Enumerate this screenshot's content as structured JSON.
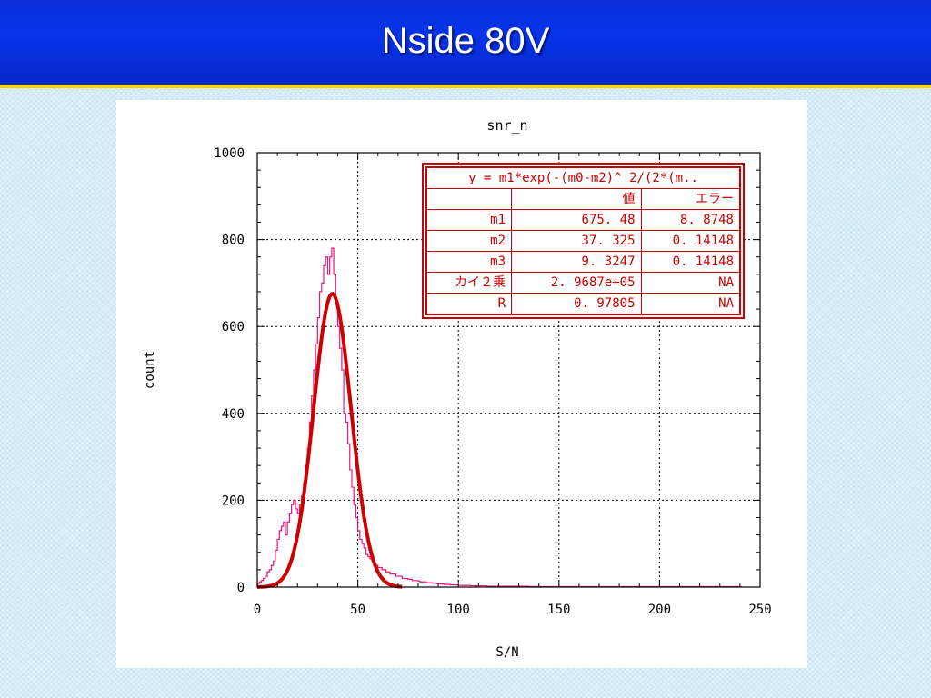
{
  "slide": {
    "title": "Nside 80V"
  },
  "colors": {
    "hist": "#e8157d",
    "fit": "#cc0000",
    "axis": "#000000",
    "grid": "#000000",
    "title_bar": "#0733e9",
    "title_underline": "#ffd400"
  },
  "fit_table": {
    "formula": "y = m1*exp(-(m0-m2)^ 2/(2*(m..",
    "headers": [
      "",
      "値",
      "エラー"
    ],
    "rows": [
      {
        "name": "m1",
        "value": "675. 48",
        "error": "8. 8748"
      },
      {
        "name": "m2",
        "value": "37. 325",
        "error": "0. 14148"
      },
      {
        "name": "m3",
        "value": "9. 3247",
        "error": "0. 14148"
      },
      {
        "name": "カイ２乗",
        "value": "2. 9687e+05",
        "error": "NA"
      },
      {
        "name": "R",
        "value": "0. 97805",
        "error": "NA"
      }
    ]
  },
  "chart_data": {
    "type": "line",
    "title": "snr_n",
    "xlabel": "S/N",
    "ylabel": "count",
    "xlim": [
      0,
      250
    ],
    "ylim": [
      0,
      1000
    ],
    "x_ticks": [
      0,
      50,
      100,
      150,
      200,
      250
    ],
    "y_ticks": [
      0,
      200,
      400,
      600,
      800,
      1000
    ],
    "grid": true,
    "series": [
      {
        "kind": "histogram",
        "color": "#e8157d",
        "bin_width": 1,
        "x": [
          0,
          1,
          2,
          3,
          4,
          5,
          6,
          7,
          8,
          9,
          10,
          11,
          12,
          13,
          14,
          15,
          16,
          17,
          18,
          19,
          20,
          21,
          22,
          23,
          24,
          25,
          26,
          27,
          28,
          29,
          30,
          31,
          32,
          33,
          34,
          35,
          36,
          37,
          38,
          39,
          40,
          41,
          42,
          43,
          44,
          45,
          46,
          47,
          48,
          49,
          50,
          51,
          52,
          53,
          54,
          55,
          56,
          57,
          58,
          59,
          60,
          61,
          62,
          63,
          64,
          65,
          66,
          67,
          68,
          69,
          70,
          71,
          72,
          73,
          74,
          75,
          76,
          77,
          78,
          79,
          80,
          81,
          82,
          83,
          84,
          85,
          86,
          87,
          88,
          89,
          90,
          91,
          92,
          93,
          94,
          95,
          96,
          97,
          98,
          99,
          100,
          102,
          104,
          106,
          108,
          110,
          112,
          114,
          116,
          118,
          120,
          125,
          130,
          135,
          140,
          150,
          160,
          170,
          180,
          190,
          200,
          210,
          220,
          230,
          240
        ],
        "y": [
          8,
          12,
          15,
          20,
          25,
          35,
          40,
          50,
          60,
          85,
          110,
          130,
          140,
          150,
          120,
          150,
          170,
          190,
          200,
          180,
          170,
          190,
          210,
          240,
          280,
          320,
          380,
          440,
          500,
          560,
          620,
          680,
          700,
          740,
          760,
          720,
          760,
          780,
          720,
          660,
          600,
          550,
          500,
          400,
          380,
          330,
          270,
          230,
          190,
          160,
          130,
          110,
          100,
          90,
          75,
          70,
          65,
          60,
          55,
          50,
          45,
          45,
          40,
          40,
          35,
          35,
          30,
          30,
          30,
          25,
          25,
          25,
          20,
          20,
          20,
          18,
          18,
          15,
          15,
          15,
          14,
          12,
          12,
          12,
          10,
          10,
          10,
          9,
          9,
          8,
          8,
          7,
          7,
          6,
          6,
          6,
          5,
          5,
          5,
          5,
          4,
          4,
          4,
          3,
          3,
          3,
          3,
          2,
          2,
          2,
          2,
          2,
          2,
          1,
          1,
          1,
          1,
          1,
          1,
          1,
          1,
          1,
          1,
          1,
          1
        ]
      },
      {
        "kind": "fit",
        "name": "gaussian fit",
        "color": "#cc0000",
        "m1": 675.48,
        "m2": 37.325,
        "m3": 9.3247,
        "x_range": [
          0,
          72
        ]
      }
    ]
  }
}
